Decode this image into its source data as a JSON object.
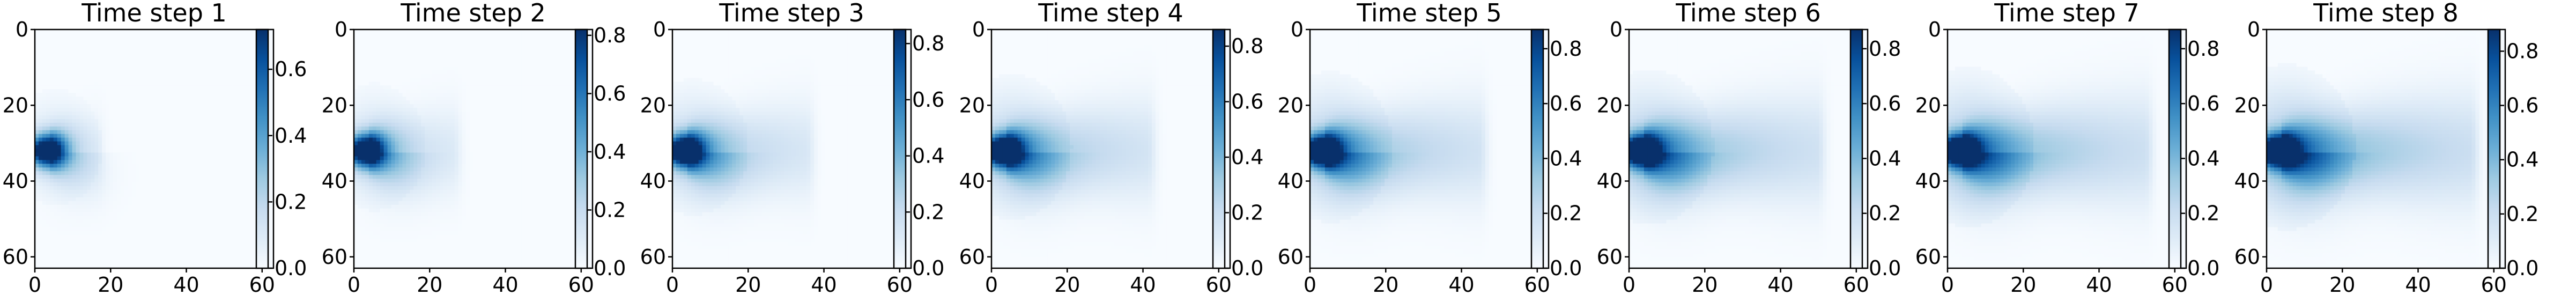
{
  "chart_data": {
    "type": "heatmap",
    "colormap": "Blues",
    "grid": false,
    "panels": [
      {
        "title": "Time step 1",
        "xlim": [
          0,
          63
        ],
        "ylim": [
          63,
          0
        ],
        "xticks": [
          "0",
          "20",
          "40",
          "60"
        ],
        "yticks": [
          "0",
          "20",
          "40",
          "60"
        ],
        "colorbar_ticks": [
          "0.0",
          "0.2",
          "0.4",
          "0.6"
        ],
        "colorbar_range": [
          0.0,
          0.72
        ],
        "source": {
          "x": 3,
          "y": 32
        },
        "plume_length": 15,
        "plume_spread": 0.55
      },
      {
        "title": "Time step 2",
        "xlim": [
          0,
          63
        ],
        "ylim": [
          63,
          0
        ],
        "xticks": [
          "0",
          "20",
          "40",
          "60"
        ],
        "yticks": [
          "0",
          "20",
          "40",
          "60"
        ],
        "colorbar_ticks": [
          "0.0",
          "0.2",
          "0.4",
          "0.6",
          "0.8"
        ],
        "colorbar_range": [
          0.0,
          0.82
        ],
        "source": {
          "x": 3,
          "y": 32
        },
        "plume_length": 27,
        "plume_spread": 0.65
      },
      {
        "title": "Time step 3",
        "xlim": [
          0,
          63
        ],
        "ylim": [
          63,
          0
        ],
        "xticks": [
          "0",
          "20",
          "40",
          "60"
        ],
        "yticks": [
          "0",
          "20",
          "40",
          "60"
        ],
        "colorbar_ticks": [
          "0.0",
          "0.2",
          "0.4",
          "0.6",
          "0.8"
        ],
        "colorbar_range": [
          0.0,
          0.85
        ],
        "source": {
          "x": 3,
          "y": 32
        },
        "plume_length": 38,
        "plume_spread": 0.75
      },
      {
        "title": "Time step 4",
        "xlim": [
          0,
          63
        ],
        "ylim": [
          63,
          0
        ],
        "xticks": [
          "0",
          "20",
          "40",
          "60"
        ],
        "yticks": [
          "0",
          "20",
          "40",
          "60"
        ],
        "colorbar_ticks": [
          "0.0",
          "0.2",
          "0.4",
          "0.6",
          "0.8"
        ],
        "colorbar_range": [
          0.0,
          0.86
        ],
        "source": {
          "x": 3,
          "y": 32
        },
        "plume_length": 45,
        "plume_spread": 0.85
      },
      {
        "title": "Time step 5",
        "xlim": [
          0,
          63
        ],
        "ylim": [
          63,
          0
        ],
        "xticks": [
          "0",
          "20",
          "40",
          "60"
        ],
        "yticks": [
          "0",
          "20",
          "40",
          "60"
        ],
        "colorbar_ticks": [
          "0.0",
          "0.2",
          "0.4",
          "0.6",
          "0.8"
        ],
        "colorbar_range": [
          0.0,
          0.87
        ],
        "source": {
          "x": 3,
          "y": 32
        },
        "plume_length": 49,
        "plume_spread": 0.9
      },
      {
        "title": "Time step 6",
        "xlim": [
          0,
          63
        ],
        "ylim": [
          63,
          0
        ],
        "xticks": [
          "0",
          "20",
          "40",
          "60"
        ],
        "yticks": [
          "0",
          "20",
          "40",
          "60"
        ],
        "colorbar_ticks": [
          "0.0",
          "0.2",
          "0.4",
          "0.6",
          "0.8"
        ],
        "colorbar_range": [
          0.0,
          0.87
        ],
        "source": {
          "x": 3,
          "y": 32
        },
        "plume_length": 55,
        "plume_spread": 0.95
      },
      {
        "title": "Time step 7",
        "xlim": [
          0,
          63
        ],
        "ylim": [
          63,
          0
        ],
        "xticks": [
          "0",
          "20",
          "40",
          "60"
        ],
        "yticks": [
          "0",
          "20",
          "40",
          "60"
        ],
        "colorbar_ticks": [
          "0.0",
          "0.2",
          "0.4",
          "0.6",
          "0.8"
        ],
        "colorbar_range": [
          0.0,
          0.87
        ],
        "source": {
          "x": 3,
          "y": 32
        },
        "plume_length": 58,
        "plume_spread": 1.0
      },
      {
        "title": "Time step 8",
        "xlim": [
          0,
          63
        ],
        "ylim": [
          63,
          0
        ],
        "xticks": [
          "0",
          "20",
          "40",
          "60"
        ],
        "yticks": [
          "0",
          "20",
          "40",
          "60"
        ],
        "colorbar_ticks": [
          "0.0",
          "0.2",
          "0.4",
          "0.6",
          "0.8"
        ],
        "colorbar_range": [
          0.0,
          0.88
        ],
        "source": {
          "x": 3,
          "y": 32
        },
        "plume_length": 60,
        "plume_spread": 1.05
      }
    ]
  }
}
